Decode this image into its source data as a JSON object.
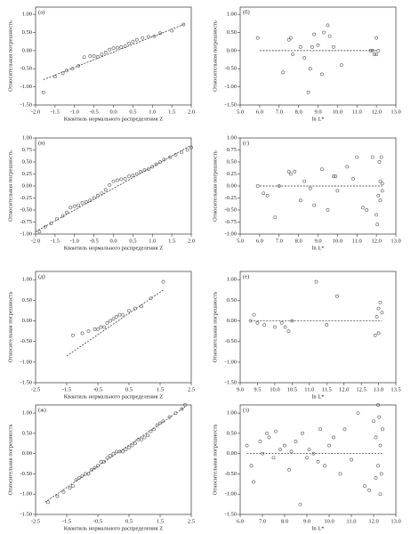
{
  "chart_data": [
    {
      "type": "scatter",
      "label": "(а)",
      "ylabel": "Относительная погрешность",
      "xlabel": "Квантиль нормального распределения Z",
      "color": "#555555",
      "xlim": [
        -2,
        2
      ],
      "xticks": [
        {
          "value": -2,
          "label": "-2.0"
        },
        -1.5,
        {
          "value": -1,
          "label": "-1.0"
        },
        -0.5,
        {
          "value": 0,
          "label": "0.0"
        },
        0.5,
        {
          "value": 1,
          "label": "1.0"
        },
        1.5,
        {
          "value": 2,
          "label": "2.0"
        }
      ],
      "ylim": [
        -1.5,
        1.2
      ],
      "yticks": [
        {
          "value": -1.5,
          "label": "-1.50"
        },
        {
          "value": -1,
          "label": "-1.00"
        },
        {
          "value": -0.5,
          "label": "-0.50"
        },
        {
          "value": 0,
          "label": "0.00"
        },
        {
          "value": 0.5,
          "label": "0.50"
        },
        {
          "value": 1,
          "label": "1.00"
        }
      ],
      "points": {
        "x": [
          -1.8,
          -1.5,
          -1.3,
          -1.2,
          -1.05,
          -0.9,
          -0.75,
          -0.6,
          -0.5,
          -0.4,
          -0.3,
          -0.2,
          -0.1,
          0,
          0.1,
          0.2,
          0.3,
          0.4,
          0.5,
          0.6,
          0.75,
          0.9,
          1.05,
          1.2,
          1.5,
          1.8
        ],
        "y": [
          -1.15,
          -0.72,
          -0.62,
          -0.55,
          -0.5,
          -0.42,
          -0.18,
          -0.15,
          -0.15,
          -0.17,
          -0.1,
          -0.05,
          0.03,
          0.07,
          0.08,
          0.1,
          0.12,
          0.2,
          0.25,
          0.3,
          0.35,
          0.38,
          0.4,
          0.48,
          0.55,
          0.72
        ]
      },
      "reference_line": {
        "x": [
          -1.8,
          1.8
        ],
        "y": [
          -0.8,
          0.72
        ]
      }
    },
    {
      "type": "scatter",
      "label": "(б)",
      "ylabel": "Относительная погрешность",
      "xlabel": "ln L*",
      "color": "#555555",
      "xlim": [
        5,
        13
      ],
      "xticks": [
        {
          "value": 5,
          "label": "5.0"
        },
        {
          "value": 6,
          "label": "6.0"
        },
        {
          "value": 7,
          "label": "7.0"
        },
        {
          "value": 8,
          "label": "8.0"
        },
        {
          "value": 9,
          "label": "9.0"
        },
        {
          "value": 10,
          "label": "10.0"
        },
        {
          "value": 11,
          "label": "11.0"
        },
        {
          "value": 12,
          "label": "12.0"
        },
        {
          "value": 13,
          "label": "13.0"
        }
      ],
      "ylim": [
        -1.5,
        1.2
      ],
      "yticks": [
        {
          "value": -1.5,
          "label": "-1.50"
        },
        {
          "value": -1,
          "label": "-1.00"
        },
        {
          "value": -0.5,
          "label": "-0.50"
        },
        {
          "value": 0,
          "label": "0.00"
        },
        {
          "value": 0.5,
          "label": "0.50"
        },
        {
          "value": 1,
          "label": "1.00"
        }
      ],
      "points": {
        "x": [
          5.9,
          7.2,
          7.5,
          7.6,
          7.7,
          8.1,
          8.3,
          8.5,
          8.6,
          8.7,
          8.8,
          9.0,
          9.2,
          9.3,
          9.5,
          9.6,
          9.8,
          10.2,
          11.7,
          11.8,
          11.9,
          12.0,
          12.0,
          12.1
        ],
        "y": [
          0.35,
          -0.6,
          0.3,
          0.35,
          -0.1,
          0.1,
          -0.2,
          -1.15,
          -0.5,
          0.1,
          0.45,
          0.15,
          -0.65,
          0.5,
          0.7,
          0.4,
          0.1,
          -0.4,
          0,
          0,
          -0.1,
          -0.1,
          0.35,
          0
        ]
      },
      "reference_line": {
        "x": [
          6,
          12
        ],
        "y": [
          0,
          0
        ]
      }
    },
    {
      "type": "scatter",
      "label": "(в)",
      "ylabel": "Относительная погрешность",
      "xlabel": "Квантиль нормального распределения Z",
      "color": "#555555",
      "xlim": [
        -2,
        2
      ],
      "xticks": [
        {
          "value": -2,
          "label": "-2.0"
        },
        -1.5,
        {
          "value": -1,
          "label": "-1.0"
        },
        -0.5,
        {
          "value": 0,
          "label": "0.0"
        },
        0.5,
        {
          "value": 1,
          "label": "1.0"
        },
        1.5,
        {
          "value": 2,
          "label": "2.0"
        }
      ],
      "ylim": [
        -1,
        1
      ],
      "yticks": [
        {
          "value": -1,
          "label": "-1.00"
        },
        {
          "value": -0.75,
          "label": "-0.75"
        },
        {
          "value": -0.5,
          "label": "-0.50"
        },
        {
          "value": -0.25,
          "label": "-0.25"
        },
        {
          "value": 0,
          "label": "0.00"
        },
        {
          "value": 0.25,
          "label": "0.25"
        },
        {
          "value": 0.5,
          "label": "0.50"
        },
        {
          "value": 0.75,
          "label": "0.75"
        },
        {
          "value": 1,
          "label": "1.00"
        }
      ],
      "points": {
        "x": [
          -1.9,
          -1.75,
          -1.6,
          -1.45,
          -1.3,
          -1.2,
          -1.1,
          -1.0,
          -0.9,
          -0.8,
          -0.7,
          -0.6,
          -0.5,
          -0.4,
          -0.3,
          -0.2,
          -0.1,
          0,
          0.1,
          0.2,
          0.3,
          0.4,
          0.5,
          0.6,
          0.7,
          0.8,
          0.9,
          1.0,
          1.1,
          1.2,
          1.3,
          1.45,
          1.6,
          1.75,
          1.9,
          2.0
        ],
        "y": [
          -0.95,
          -0.85,
          -0.78,
          -0.68,
          -0.62,
          -0.55,
          -0.45,
          -0.42,
          -0.4,
          -0.35,
          -0.33,
          -0.3,
          -0.25,
          -0.2,
          -0.15,
          -0.08,
          0.02,
          0.1,
          0.12,
          0.14,
          0.15,
          0.2,
          0.22,
          0.25,
          0.3,
          0.33,
          0.35,
          0.4,
          0.45,
          0.5,
          0.55,
          0.6,
          0.65,
          0.7,
          0.75,
          0.8
        ]
      },
      "reference_line": {
        "x": [
          -2,
          2
        ],
        "y": [
          -0.95,
          0.85
        ]
      }
    },
    {
      "type": "scatter",
      "label": "(г)",
      "ylabel": "Относительная погрешность",
      "xlabel": "ln L*",
      "color": "#555555",
      "xlim": [
        5,
        13
      ],
      "xticks": [
        {
          "value": 5,
          "label": "5.0"
        },
        {
          "value": 6,
          "label": "6.0"
        },
        {
          "value": 7,
          "label": "7.0"
        },
        {
          "value": 8,
          "label": "8.0"
        },
        {
          "value": 9,
          "label": "9.0"
        },
        {
          "value": 10,
          "label": "10.0"
        },
        {
          "value": 11,
          "label": "11.0"
        },
        {
          "value": 12,
          "label": "12.0"
        },
        {
          "value": 13,
          "label": "13.0"
        }
      ],
      "ylim": [
        -1,
        1
      ],
      "yticks": [
        {
          "value": -1,
          "label": "-1.00"
        },
        {
          "value": -0.75,
          "label": "-0.75"
        },
        {
          "value": -0.5,
          "label": "-0.50"
        },
        {
          "value": -0.25,
          "label": "-0.25"
        },
        {
          "value": 0,
          "label": "0.00"
        },
        {
          "value": 0.25,
          "label": "0.25"
        },
        {
          "value": 0.5,
          "label": "0.50"
        },
        {
          "value": 0.75,
          "label": "0.75"
        },
        {
          "value": 1,
          "label": "1.00"
        }
      ],
      "points": {
        "x": [
          5.9,
          6.2,
          6.4,
          6.8,
          7.0,
          7.5,
          7.6,
          7.8,
          8.1,
          8.3,
          8.6,
          8.8,
          9.2,
          9.5,
          9.8,
          9.9,
          10.0,
          10.5,
          10.8,
          11.0,
          11.3,
          11.5,
          11.8,
          12.0,
          12.05,
          12.1,
          12.15,
          12.2,
          12.2,
          12.25,
          12.3,
          12.3
        ],
        "y": [
          0,
          -0.15,
          -0.2,
          -0.65,
          0,
          0.3,
          0.25,
          0.3,
          -0.3,
          0.1,
          -0.05,
          -0.4,
          0.35,
          -0.5,
          0.2,
          0.2,
          -0.1,
          0.4,
          0.15,
          0.6,
          -0.45,
          -0.5,
          0.6,
          -0.6,
          -0.8,
          -0.2,
          0.5,
          0.1,
          -0.3,
          0.6,
          -0.1,
          0.05
        ]
      },
      "reference_line": {
        "x": [
          6,
          12.3
        ],
        "y": [
          0,
          0
        ]
      }
    },
    {
      "type": "scatter",
      "label": "(д)",
      "ylabel": "Относительная погрешность",
      "xlabel": "Квантиль нормального распределения Z",
      "color": "#555555",
      "xlim": [
        -2.5,
        2.5
      ],
      "xticks": [
        -2.5,
        -1.5,
        -0.5,
        0.5,
        1.5,
        2.5
      ],
      "ylim": [
        -1.5,
        1.2
      ],
      "yticks": [
        {
          "value": -1.5,
          "label": "-1.50"
        },
        {
          "value": -1,
          "label": "-1.00"
        },
        {
          "value": -0.5,
          "label": "-0.50"
        },
        {
          "value": 0,
          "label": "0.00"
        },
        {
          "value": 0.5,
          "label": "0.50"
        },
        {
          "value": 1,
          "label": "1.00"
        }
      ],
      "points": {
        "x": [
          -1.3,
          -1.0,
          -0.8,
          -0.6,
          -0.5,
          -0.4,
          -0.3,
          -0.2,
          -0.1,
          0,
          0.1,
          0.2,
          0.3,
          0.5,
          0.7,
          0.9,
          1.2,
          1.6
        ],
        "y": [
          -0.35,
          -0.3,
          -0.25,
          -0.2,
          -0.2,
          -0.15,
          -0.15,
          -0.05,
          0,
          0.05,
          0.1,
          0.15,
          0.15,
          0.25,
          0.3,
          0.35,
          0.55,
          0.95
        ]
      },
      "reference_line": {
        "x": [
          -1.5,
          1.6
        ],
        "y": [
          -0.85,
          0.75
        ]
      }
    },
    {
      "type": "scatter",
      "label": "(е)",
      "ylabel": "Относительная погрешность",
      "xlabel": "ln L*",
      "color": "#555555",
      "xlim": [
        9,
        13.5
      ],
      "xticks": [
        {
          "value": 9,
          "label": "9.0"
        },
        9.5,
        {
          "value": 10,
          "label": "10.0"
        },
        10.5,
        {
          "value": 11,
          "label": "11.0"
        },
        11.5,
        {
          "value": 12,
          "label": "12.0"
        },
        12.5,
        {
          "value": 13,
          "label": "13.0"
        },
        13.5
      ],
      "ylim": [
        -1.5,
        1.2
      ],
      "yticks": [
        {
          "value": -1.5,
          "label": "-1.50"
        },
        {
          "value": -1,
          "label": "-1.00"
        },
        {
          "value": -0.5,
          "label": "-0.50"
        },
        {
          "value": 0,
          "label": "0.00"
        },
        {
          "value": 0.5,
          "label": "0.50"
        },
        {
          "value": 1,
          "label": "1.00"
        }
      ],
      "points": {
        "x": [
          9.3,
          9.4,
          9.5,
          9.7,
          10.0,
          10.2,
          10.3,
          10.4,
          10.5,
          11.2,
          11.5,
          11.8,
          12.9,
          12.95,
          13.0,
          13.0,
          13.05,
          13.1
        ],
        "y": [
          0,
          0.15,
          -0.05,
          -0.1,
          -0.15,
          -0.05,
          -0.15,
          -0.25,
          0,
          0.95,
          -0.1,
          0.6,
          -0.35,
          0.1,
          0.3,
          -0.3,
          0.45,
          0.2
        ]
      },
      "reference_line": {
        "x": [
          9.3,
          13.1
        ],
        "y": [
          0,
          0
        ]
      }
    },
    {
      "type": "scatter",
      "label": "(ж)",
      "ylabel": "Относительная погрешность",
      "xlabel": "Квантиль нормального распределения Z",
      "color": "#555555",
      "xlim": [
        -2.5,
        2.5
      ],
      "xticks": [
        -2.5,
        -1.5,
        -0.5,
        0.5,
        1.5,
        2.5
      ],
      "ylim": [
        -1.5,
        1.2
      ],
      "yticks": [
        {
          "value": -1.5,
          "label": "-1.50"
        },
        {
          "value": -1,
          "label": "-1.00"
        },
        {
          "value": -0.5,
          "label": "-0.50"
        },
        {
          "value": 0,
          "label": "0.00"
        },
        {
          "value": 0.5,
          "label": "0.50"
        },
        {
          "value": 1,
          "label": "1.00"
        }
      ],
      "points": {
        "x": [
          -2.1,
          -1.8,
          -1.6,
          -1.4,
          -1.3,
          -1.2,
          -1.1,
          -1.0,
          -0.9,
          -0.8,
          -0.7,
          -0.6,
          -0.5,
          -0.4,
          -0.3,
          -0.2,
          -0.1,
          0,
          0.1,
          0.2,
          0.3,
          0.4,
          0.5,
          0.6,
          0.7,
          0.8,
          0.9,
          1.0,
          1.1,
          1.2,
          1.3,
          1.4,
          1.5,
          1.6,
          1.8,
          2.0,
          2.2,
          2.3
        ],
        "y": [
          -1.2,
          -1.05,
          -0.95,
          -0.85,
          -0.8,
          -0.65,
          -0.6,
          -0.55,
          -0.5,
          -0.5,
          -0.4,
          -0.35,
          -0.3,
          -0.2,
          -0.2,
          -0.1,
          -0.05,
          0,
          0.05,
          0.05,
          0.05,
          0.1,
          0.15,
          0.2,
          0.25,
          0.35,
          0.35,
          0.4,
          0.45,
          0.55,
          0.6,
          0.7,
          0.75,
          0.8,
          0.9,
          1.0,
          1.1,
          1.2
        ]
      },
      "reference_line": {
        "x": [
          -2.2,
          2.3
        ],
        "y": [
          -1.2,
          1.15
        ]
      }
    },
    {
      "type": "scatter",
      "label": "(з)",
      "ylabel": "Относительная погрешность",
      "xlabel": "ln L*",
      "color": "#555555",
      "xlim": [
        6,
        13
      ],
      "xticks": [
        {
          "value": 6,
          "label": "6.0"
        },
        {
          "value": 7,
          "label": "7.0"
        },
        {
          "value": 8,
          "label": "8.0"
        },
        {
          "value": 9,
          "label": "9.0"
        },
        {
          "value": 10,
          "label": "10.0"
        },
        {
          "value": 11,
          "label": "11.0"
        },
        {
          "value": 12,
          "label": "12.0"
        },
        {
          "value": 13,
          "label": "13.0"
        }
      ],
      "ylim": [
        -1.5,
        1.2
      ],
      "yticks": [
        {
          "value": -1.5,
          "label": "-1.50"
        },
        {
          "value": -1,
          "label": "-1.00"
        },
        {
          "value": -0.5,
          "label": "-0.50"
        },
        {
          "value": 0,
          "label": "0.00"
        },
        {
          "value": 0.5,
          "label": "0.50"
        },
        {
          "value": 1,
          "label": "1.00"
        }
      ],
      "points": {
        "x": [
          6.3,
          6.5,
          6.6,
          6.9,
          7.0,
          7.2,
          7.3,
          7.5,
          7.6,
          7.8,
          8.0,
          8.2,
          8.3,
          8.5,
          8.7,
          8.8,
          9.0,
          9.1,
          9.3,
          9.5,
          9.6,
          9.8,
          10.0,
          10.2,
          10.5,
          10.7,
          11.0,
          11.3,
          11.6,
          11.8,
          12.0,
          12.1,
          12.1,
          12.2,
          12.2,
          12.25,
          12.3,
          12.3,
          12.35,
          12.4
        ],
        "y": [
          0.2,
          -0.3,
          -0.7,
          0.3,
          0,
          0.5,
          0.4,
          -0.1,
          0.55,
          0.1,
          0.2,
          -0.4,
          0.05,
          0.3,
          -1.25,
          0.5,
          -0.1,
          0.1,
          0,
          -0.2,
          0.6,
          -0.3,
          0.2,
          0.4,
          -0.5,
          0.6,
          -0.15,
          1.0,
          -0.8,
          -0.9,
          0.8,
          -0.6,
          0.4,
          1.2,
          -0.3,
          0.9,
          -1.0,
          0.2,
          -0.5,
          0.6
        ]
      },
      "reference_line": {
        "x": [
          6.3,
          12.4
        ],
        "y": [
          0,
          0
        ]
      }
    }
  ]
}
